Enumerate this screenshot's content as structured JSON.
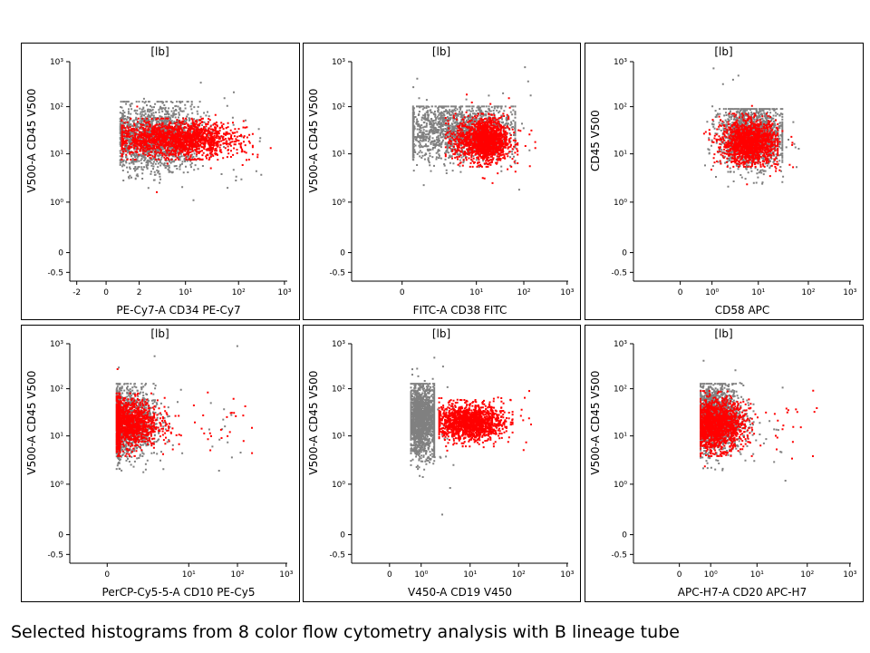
{
  "caption": "Selected histograms from 8 color flow cytometry analysis with B lineage tube",
  "colors": {
    "population_gray": "#808080",
    "population_red": "#ff0000"
  },
  "chart_data": [
    {
      "type": "scatter",
      "title": "[lb]",
      "xlabel": "PE-Cy7-A CD34 PE-Cy7",
      "ylabel": "V500-A CD45 V500",
      "xticks": [
        "-2",
        "0",
        "2",
        "10¹",
        "10²",
        "10³"
      ],
      "yticks": [
        "10³",
        "10²",
        "10¹",
        "10⁰",
        "0",
        "-0.5"
      ],
      "grid": false,
      "series": [
        {
          "color": "gray",
          "x_range": [
            "-1.3",
            "120"
          ],
          "y_range": [
            "1",
            "130"
          ],
          "center": [
            "10",
            "20"
          ]
        },
        {
          "color": "red",
          "x_range": [
            "-1",
            "150"
          ],
          "y_range": [
            "8",
            "60"
          ],
          "center": [
            "30",
            "22"
          ]
        }
      ]
    },
    {
      "type": "scatter",
      "title": "[lb]",
      "xlabel": "FITC-A CD38 FITC",
      "ylabel": "V500-A CD45 V500",
      "xticks": [
        "0",
        "10¹",
        "10²",
        "10³"
      ],
      "yticks": [
        "10³",
        "10²",
        "10¹",
        "10⁰",
        "0",
        "-0.5"
      ],
      "grid": false,
      "series": [
        {
          "color": "gray",
          "x_range": [
            "-1",
            "60"
          ],
          "y_range": [
            "1",
            "100"
          ],
          "center": [
            "5",
            "40"
          ]
        },
        {
          "color": "red",
          "x_range": [
            "3",
            "60"
          ],
          "y_range": [
            "6",
            "70"
          ],
          "center": [
            "15",
            "20"
          ]
        }
      ]
    },
    {
      "type": "scatter",
      "title": "[lb]",
      "xlabel": "CD58 APC",
      "ylabel": "CD45 V500",
      "xticks": [
        "0",
        "10⁰",
        "10¹",
        "10²",
        "10³"
      ],
      "yticks": [
        "10³",
        "10²",
        "10¹",
        "10⁰",
        "0",
        "-0.5"
      ],
      "grid": false,
      "series": [
        {
          "color": "gray",
          "x_range": [
            "0.5",
            "30"
          ],
          "y_range": [
            "2",
            "90"
          ],
          "center": [
            "5",
            "30"
          ]
        },
        {
          "color": "red",
          "x_range": [
            "0.5",
            "25"
          ],
          "y_range": [
            "6",
            "70"
          ],
          "center": [
            "6",
            "18"
          ]
        }
      ]
    },
    {
      "type": "scatter",
      "title": "[lb]",
      "xlabel": "PerCP-Cy5-5-A CD10 PE-Cy5",
      "ylabel": "V500-A CD45 V500",
      "xticks": [
        "0",
        "10¹",
        "10²",
        "10³"
      ],
      "yticks": [
        "10³",
        "10²",
        "10¹",
        "10⁰",
        "0",
        "-0.5"
      ],
      "grid": false,
      "series": [
        {
          "color": "gray",
          "x_range": [
            "-1",
            "30"
          ],
          "y_range": [
            "1",
            "120"
          ],
          "center": [
            "0",
            "20"
          ]
        },
        {
          "color": "red",
          "x_range": [
            "-1",
            "50"
          ],
          "y_range": [
            "6",
            "80"
          ],
          "center": [
            "0",
            "18"
          ]
        }
      ]
    },
    {
      "type": "scatter",
      "title": "[lb]",
      "xlabel": "V450-A CD19 V450",
      "ylabel": "V500-A CD45 V500",
      "xticks": [
        "0",
        "10⁰",
        "10¹",
        "10²",
        "10³"
      ],
      "yticks": [
        "10³",
        "10²",
        "10¹",
        "10⁰",
        "0",
        "-0.5"
      ],
      "grid": false,
      "series": [
        {
          "color": "gray",
          "x_range": [
            "-1",
            "1"
          ],
          "y_range": [
            "1",
            "120"
          ],
          "center": [
            "0",
            "25"
          ]
        },
        {
          "color": "red",
          "x_range": [
            "1",
            "70"
          ],
          "y_range": [
            "8",
            "60"
          ],
          "center": [
            "10",
            "20"
          ]
        }
      ]
    },
    {
      "type": "scatter",
      "title": "[lb]",
      "xlabel": "APC-H7-A CD20 APC-H7",
      "ylabel": "V500-A CD45 V500",
      "xticks": [
        "0",
        "10⁰",
        "10¹",
        "10²",
        "10³"
      ],
      "yticks": [
        "10³",
        "10²",
        "10¹",
        "10⁰",
        "0",
        "-0.5"
      ],
      "grid": false,
      "series": [
        {
          "color": "gray",
          "x_range": [
            "-1",
            "15"
          ],
          "y_range": [
            "1",
            "120"
          ],
          "center": [
            "0",
            "25"
          ]
        },
        {
          "color": "red",
          "x_range": [
            "-1",
            "60"
          ],
          "y_range": [
            "6",
            "80"
          ],
          "center": [
            "0",
            "18"
          ]
        }
      ]
    }
  ]
}
